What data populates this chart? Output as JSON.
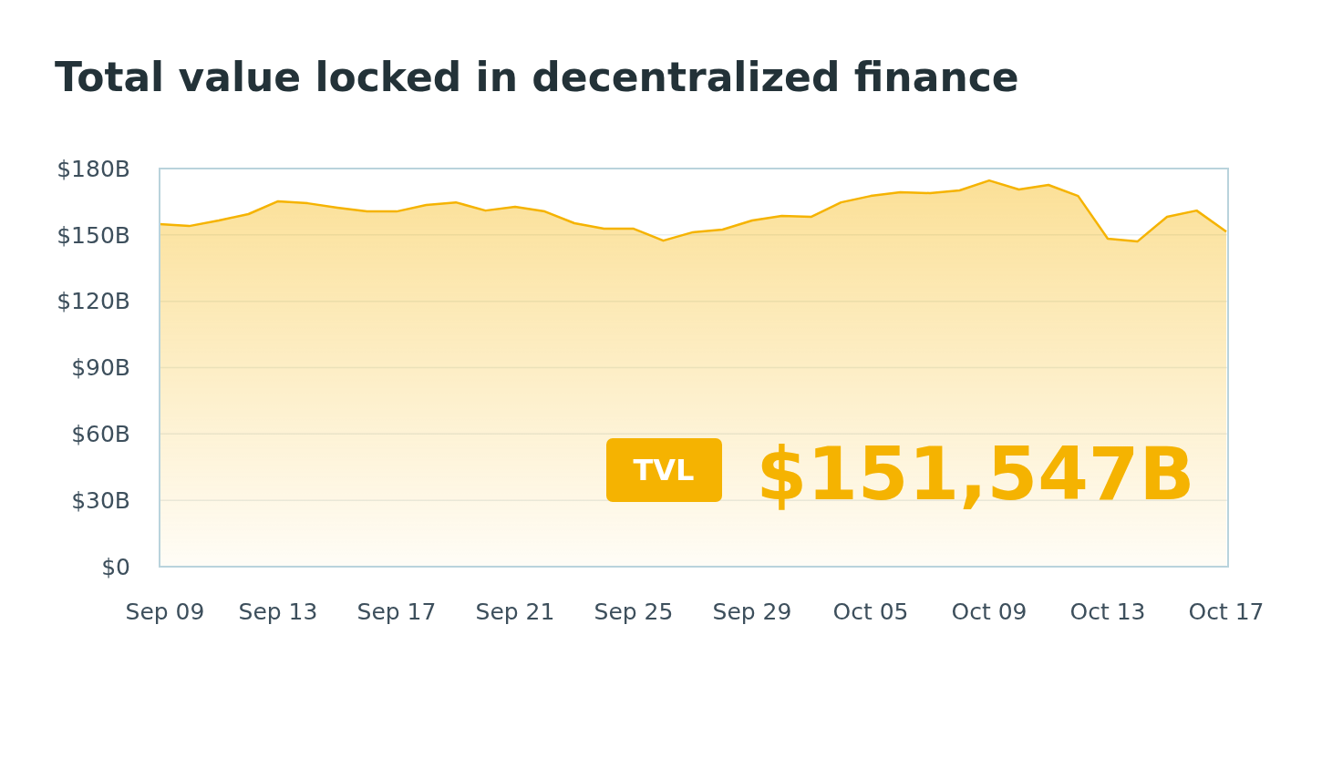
{
  "chart_data": {
    "type": "area",
    "title": "Total value locked in decentralized finance",
    "categories": [
      "Sep 09",
      null,
      null,
      null,
      "Sep 13",
      null,
      null,
      null,
      "Sep 17",
      null,
      null,
      null,
      "Sep 21",
      null,
      null,
      null,
      "Sep 25",
      null,
      null,
      null,
      "Sep 29",
      null,
      null,
      null,
      "Oct 05",
      null,
      null,
      null,
      "Oct 09",
      null,
      null,
      null,
      "Oct 13",
      null,
      null,
      null,
      "Oct 17"
    ],
    "series": [
      {
        "color": "#f5b301",
        "values": [
          154.9,
          154,
          156.5,
          159.4,
          165.2,
          164.3,
          162.3,
          160.6,
          160.6,
          163.5,
          164.7,
          161,
          162.7,
          160.6,
          155.3,
          152.8,
          152.8,
          147.4,
          151.2,
          152.4,
          156.5,
          158.6,
          158.2,
          164.7,
          167.6,
          169.3,
          168.9,
          170.1,
          174.6,
          170.5,
          172.6,
          167.6,
          148.3,
          147,
          158.2,
          161,
          151.5
        ]
      }
    ],
    "ylim": [
      0,
      180
    ],
    "yticks": [
      {
        "value": 0,
        "label": "$0"
      },
      {
        "value": 30,
        "label": "$30B"
      },
      {
        "value": 60,
        "label": "$60B"
      },
      {
        "value": 90,
        "label": "$90B"
      },
      {
        "value": 120,
        "label": "$120B"
      },
      {
        "value": 150,
        "label": "$150B"
      },
      {
        "value": 180,
        "label": "$180B"
      }
    ],
    "grid": "y",
    "annotations": [
      "TVL",
      "$151,547B"
    ]
  }
}
